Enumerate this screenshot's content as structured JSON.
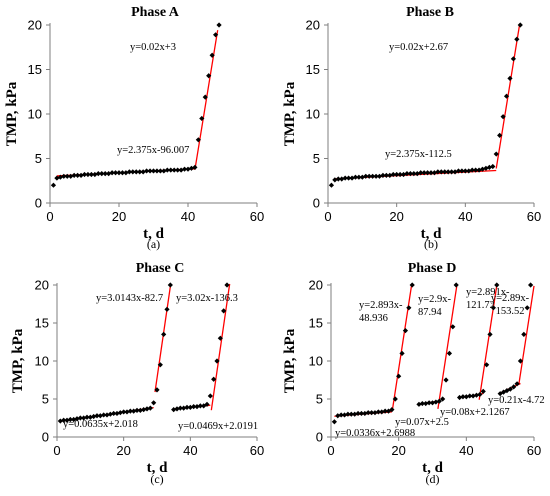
{
  "chart_data": [
    {
      "panel_label": "(a)",
      "type": "scatter",
      "title": "Phase A",
      "xlabel": "t, d",
      "ylabel": "TMP, kPa",
      "xlim": [
        0,
        60
      ],
      "ylim": [
        0,
        20
      ],
      "xticks": [
        "0",
        "20",
        "40",
        "60"
      ],
      "yticks": [
        "0",
        "5",
        "10",
        "15",
        "20"
      ],
      "grid": false,
      "series": [
        {
          "x": [
            1,
            2,
            3,
            4,
            5,
            6,
            7,
            8,
            9,
            10,
            11,
            12,
            13,
            14,
            15,
            16,
            17,
            18,
            19,
            20,
            21,
            22,
            23,
            24,
            25,
            26,
            27,
            28,
            29,
            30,
            31,
            32,
            33,
            34,
            35,
            36,
            37,
            38,
            39,
            40,
            41,
            42,
            43,
            44,
            45,
            46,
            47,
            48,
            49
          ],
          "y": [
            2.0,
            2.8,
            2.9,
            3.0,
            3.0,
            3.0,
            3.1,
            3.1,
            3.1,
            3.2,
            3.2,
            3.2,
            3.2,
            3.3,
            3.3,
            3.3,
            3.3,
            3.4,
            3.4,
            3.4,
            3.4,
            3.4,
            3.5,
            3.5,
            3.5,
            3.5,
            3.5,
            3.6,
            3.6,
            3.6,
            3.6,
            3.6,
            3.6,
            3.7,
            3.7,
            3.7,
            3.7,
            3.7,
            3.8,
            3.8,
            3.9,
            4.0,
            7.1,
            9.5,
            11.9,
            14.3,
            16.6,
            18.9,
            20.0
          ]
        }
      ],
      "trendlines": [
        {
          "label": "y=0.02x+3",
          "slope": 0.02,
          "intercept": 3,
          "x_range": [
            2,
            42
          ]
        },
        {
          "label": "y=2.375x-96.007",
          "slope": 2.375,
          "intercept": -96.007,
          "x_range": [
            42,
            48.6
          ]
        }
      ]
    },
    {
      "panel_label": "(b)",
      "type": "scatter",
      "title": "Phase B",
      "xlabel": "t, d",
      "ylabel": "TMP, kPa",
      "xlim": [
        0,
        60
      ],
      "ylim": [
        0,
        20
      ],
      "xticks": [
        "0",
        "20",
        "40",
        "60"
      ],
      "yticks": [
        "0",
        "5",
        "10",
        "15",
        "20"
      ],
      "grid": false,
      "series": [
        {
          "x": [
            1,
            2,
            3,
            4,
            5,
            6,
            7,
            8,
            9,
            10,
            11,
            12,
            13,
            14,
            15,
            16,
            17,
            18,
            19,
            20,
            21,
            22,
            23,
            24,
            25,
            26,
            27,
            28,
            29,
            30,
            31,
            32,
            33,
            34,
            35,
            36,
            37,
            38,
            39,
            40,
            41,
            42,
            43,
            44,
            45,
            46,
            47,
            48,
            49,
            50,
            51,
            52,
            53,
            54,
            55,
            56
          ],
          "y": [
            2.0,
            2.6,
            2.7,
            2.7,
            2.8,
            2.8,
            2.8,
            2.9,
            2.9,
            2.9,
            3.0,
            3.0,
            3.0,
            3.0,
            3.0,
            3.1,
            3.1,
            3.1,
            3.2,
            3.2,
            3.2,
            3.2,
            3.3,
            3.3,
            3.3,
            3.3,
            3.4,
            3.4,
            3.4,
            3.4,
            3.4,
            3.5,
            3.5,
            3.5,
            3.5,
            3.5,
            3.5,
            3.6,
            3.6,
            3.6,
            3.6,
            3.7,
            3.7,
            3.7,
            3.8,
            3.9,
            4.0,
            4.1,
            5.5,
            7.6,
            9.7,
            12.0,
            14.0,
            16.2,
            18.4,
            20.0
          ]
        }
      ],
      "trendlines": [
        {
          "label": "y=0.02x+2.67",
          "slope": 0.02,
          "intercept": 2.67,
          "x_range": [
            2,
            49
          ]
        },
        {
          "label": "y=2.375x-112.5",
          "slope": 2.375,
          "intercept": -112.5,
          "x_range": [
            49,
            55.8
          ]
        }
      ]
    },
    {
      "panel_label": "(c)",
      "type": "scatter",
      "title": "Phase C",
      "xlabel": "t, d",
      "ylabel": "TMP, kPa",
      "xlim": [
        0,
        60
      ],
      "ylim": [
        0,
        20
      ],
      "xticks": [
        "0",
        "20",
        "40",
        "60"
      ],
      "yticks": [
        "0",
        "5",
        "10",
        "15",
        "20"
      ],
      "grid": false,
      "series": [
        {
          "x": [
            1,
            2,
            3,
            4,
            5,
            6,
            7,
            8,
            9,
            10,
            11,
            12,
            13,
            14,
            15,
            16,
            17,
            18,
            19,
            20,
            21,
            22,
            23,
            24,
            25,
            26,
            27,
            28,
            29,
            30,
            31,
            32,
            33,
            34,
            35,
            36,
            37,
            38,
            39,
            40,
            41,
            42,
            43,
            44,
            45,
            46,
            47,
            48,
            49,
            50,
            51
          ],
          "y": [
            2.1,
            2.2,
            2.2,
            2.3,
            2.3,
            2.4,
            2.5,
            2.5,
            2.6,
            2.6,
            2.7,
            2.8,
            2.8,
            2.9,
            2.9,
            3.0,
            3.1,
            3.1,
            3.2,
            3.3,
            3.3,
            3.4,
            3.4,
            3.5,
            3.5,
            3.6,
            3.7,
            3.8,
            4.5,
            6.2,
            9.5,
            13.5,
            16.8,
            20.0,
            3.6,
            3.7,
            3.8,
            3.8,
            3.9,
            3.9,
            4.0,
            4.0,
            4.1,
            4.1,
            4.3,
            5.4,
            7.6,
            10.0,
            13.0,
            16.6,
            20.0
          ]
        }
      ],
      "trendlines": [
        {
          "label": "y=3.0143x-82.7",
          "slope": 3.0143,
          "intercept": -82.7,
          "x_range": [
            29.4,
            34
          ]
        },
        {
          "label": "y=3.02x-136.3",
          "slope": 3.02,
          "intercept": -136.3,
          "x_range": [
            46.3,
            51.8
          ]
        },
        {
          "label": "y=0.0635x+2.018",
          "slope": 0.0635,
          "intercept": 2.018,
          "x_range": [
            1,
            29
          ]
        },
        {
          "label": "y=0.0469x+2.0191",
          "slope": 0.0469,
          "intercept": 2.0191,
          "x_range": [
            35,
            46
          ]
        }
      ]
    },
    {
      "panel_label": "(d)",
      "type": "scatter",
      "title": "Phase D",
      "xlabel": "t, d",
      "ylabel": "TMP, kPa",
      "xlim": [
        0,
        60
      ],
      "ylim": [
        0,
        20
      ],
      "xticks": [
        "0",
        "20",
        "40",
        "60"
      ],
      "yticks": [
        "0",
        "5",
        "10",
        "15",
        "20"
      ],
      "grid": false,
      "series": [
        {
          "x": [
            1,
            2,
            3,
            4,
            5,
            6,
            7,
            8,
            9,
            10,
            11,
            12,
            13,
            14,
            15,
            16,
            17,
            18,
            19,
            20,
            21,
            22,
            23,
            24,
            26,
            27,
            28,
            29,
            30,
            31,
            32,
            33,
            34,
            35,
            36,
            37,
            38,
            39,
            40,
            41,
            42,
            43,
            44,
            45,
            46,
            47,
            48,
            49,
            50,
            51,
            52,
            53,
            54,
            55,
            56,
            57,
            58,
            59
          ],
          "y": [
            2.0,
            2.8,
            2.9,
            2.9,
            3.0,
            3.0,
            3.0,
            3.1,
            3.1,
            3.1,
            3.2,
            3.2,
            3.2,
            3.3,
            3.3,
            3.4,
            3.4,
            3.6,
            5.0,
            8.0,
            11.0,
            14.0,
            17.0,
            20.0,
            4.3,
            4.4,
            4.4,
            4.5,
            4.5,
            4.6,
            4.7,
            5.0,
            7.5,
            11.0,
            14.5,
            20.0,
            5.2,
            5.3,
            5.3,
            5.4,
            5.4,
            5.5,
            5.6,
            6.0,
            9.5,
            13.5,
            17.0,
            20.0,
            5.7,
            5.9,
            6.1,
            6.3,
            6.6,
            7.0,
            10.0,
            13.5,
            17.0,
            20.0
          ]
        }
      ],
      "trendlines": [
        {
          "label": "y=2.893x-48.936",
          "slope": 2.893,
          "intercept": -48.936,
          "x_range": [
            18.1,
            23.8
          ]
        },
        {
          "label": "y=2.9x-87.94",
          "slope": 2.9,
          "intercept": -87.94,
          "x_range": [
            31.6,
            37.2
          ]
        },
        {
          "label": "y=2.891x-121.72",
          "slope": 2.891,
          "intercept": -121.72,
          "x_range": [
            43.8,
            49.0
          ]
        },
        {
          "label": "y=2.89x-153.52",
          "slope": 2.89,
          "intercept": -153.52,
          "x_range": [
            55.5,
            60.0
          ]
        },
        {
          "label": "y=0.0336x+2.6988",
          "slope": 0.0336,
          "intercept": 2.6988,
          "x_range": [
            1,
            18
          ]
        },
        {
          "label": "y=0.07x+2.5",
          "slope": 0.07,
          "intercept": 2.5,
          "x_range": [
            26,
            32
          ]
        },
        {
          "label": "y=0.08x+2.1267",
          "slope": 0.08,
          "intercept": 2.1267,
          "x_range": [
            38,
            45
          ]
        },
        {
          "label": "y=0.21x-4.72",
          "slope": 0.21,
          "intercept": -4.72,
          "x_range": [
            50,
            56
          ]
        }
      ]
    }
  ],
  "colors": {
    "markers": "#000000",
    "trendline": "#ff0000",
    "axis": "#7f7f7f"
  }
}
